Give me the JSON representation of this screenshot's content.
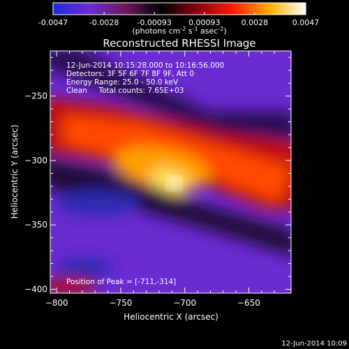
{
  "chart_data": {
    "type": "heatmap",
    "title": "Reconstructed RHESSI Image",
    "xlabel": "Heliocentric X (arcsec)",
    "ylabel": "Heliocentric Y (arcsec)",
    "xlim": [
      -805,
      -617
    ],
    "ylim": [
      -403,
      -215
    ],
    "xticks": [
      -800,
      -750,
      -700,
      -650
    ],
    "yticks": [
      -250,
      -300,
      -350,
      -400
    ],
    "colorbar": {
      "ticks": [
        "-0.0047",
        "-0.0028",
        "-0.00093",
        "0.00093",
        "0.0028",
        "0.0047"
      ],
      "range": [
        -0.0047,
        0.0047
      ],
      "unit_label": "(photons cm^-2 s^-1 asec^-2)",
      "colors": [
        "#1f2bd9",
        "#6a2bd0",
        "#6a1a5a",
        "#000000",
        "#8a0010",
        "#ff1a00",
        "#ffb000",
        "#ffffff"
      ]
    },
    "annotations": {
      "time_range": "12-Jun-2014 10:15:28.000 to 10:16:56.000",
      "detectors": "Detectors: 3F 5F 6F 7F 8F 9F, Att 0",
      "energy": "Energy Range: 25.0 - 50.0 keV",
      "clean": "Clean     Total counts: 7.65E+03",
      "peak": "Position of Peak = [-711,-314]"
    },
    "peak_position": [
      -711,
      -314
    ],
    "timestamp": "12-Jun-2014 10:09"
  }
}
